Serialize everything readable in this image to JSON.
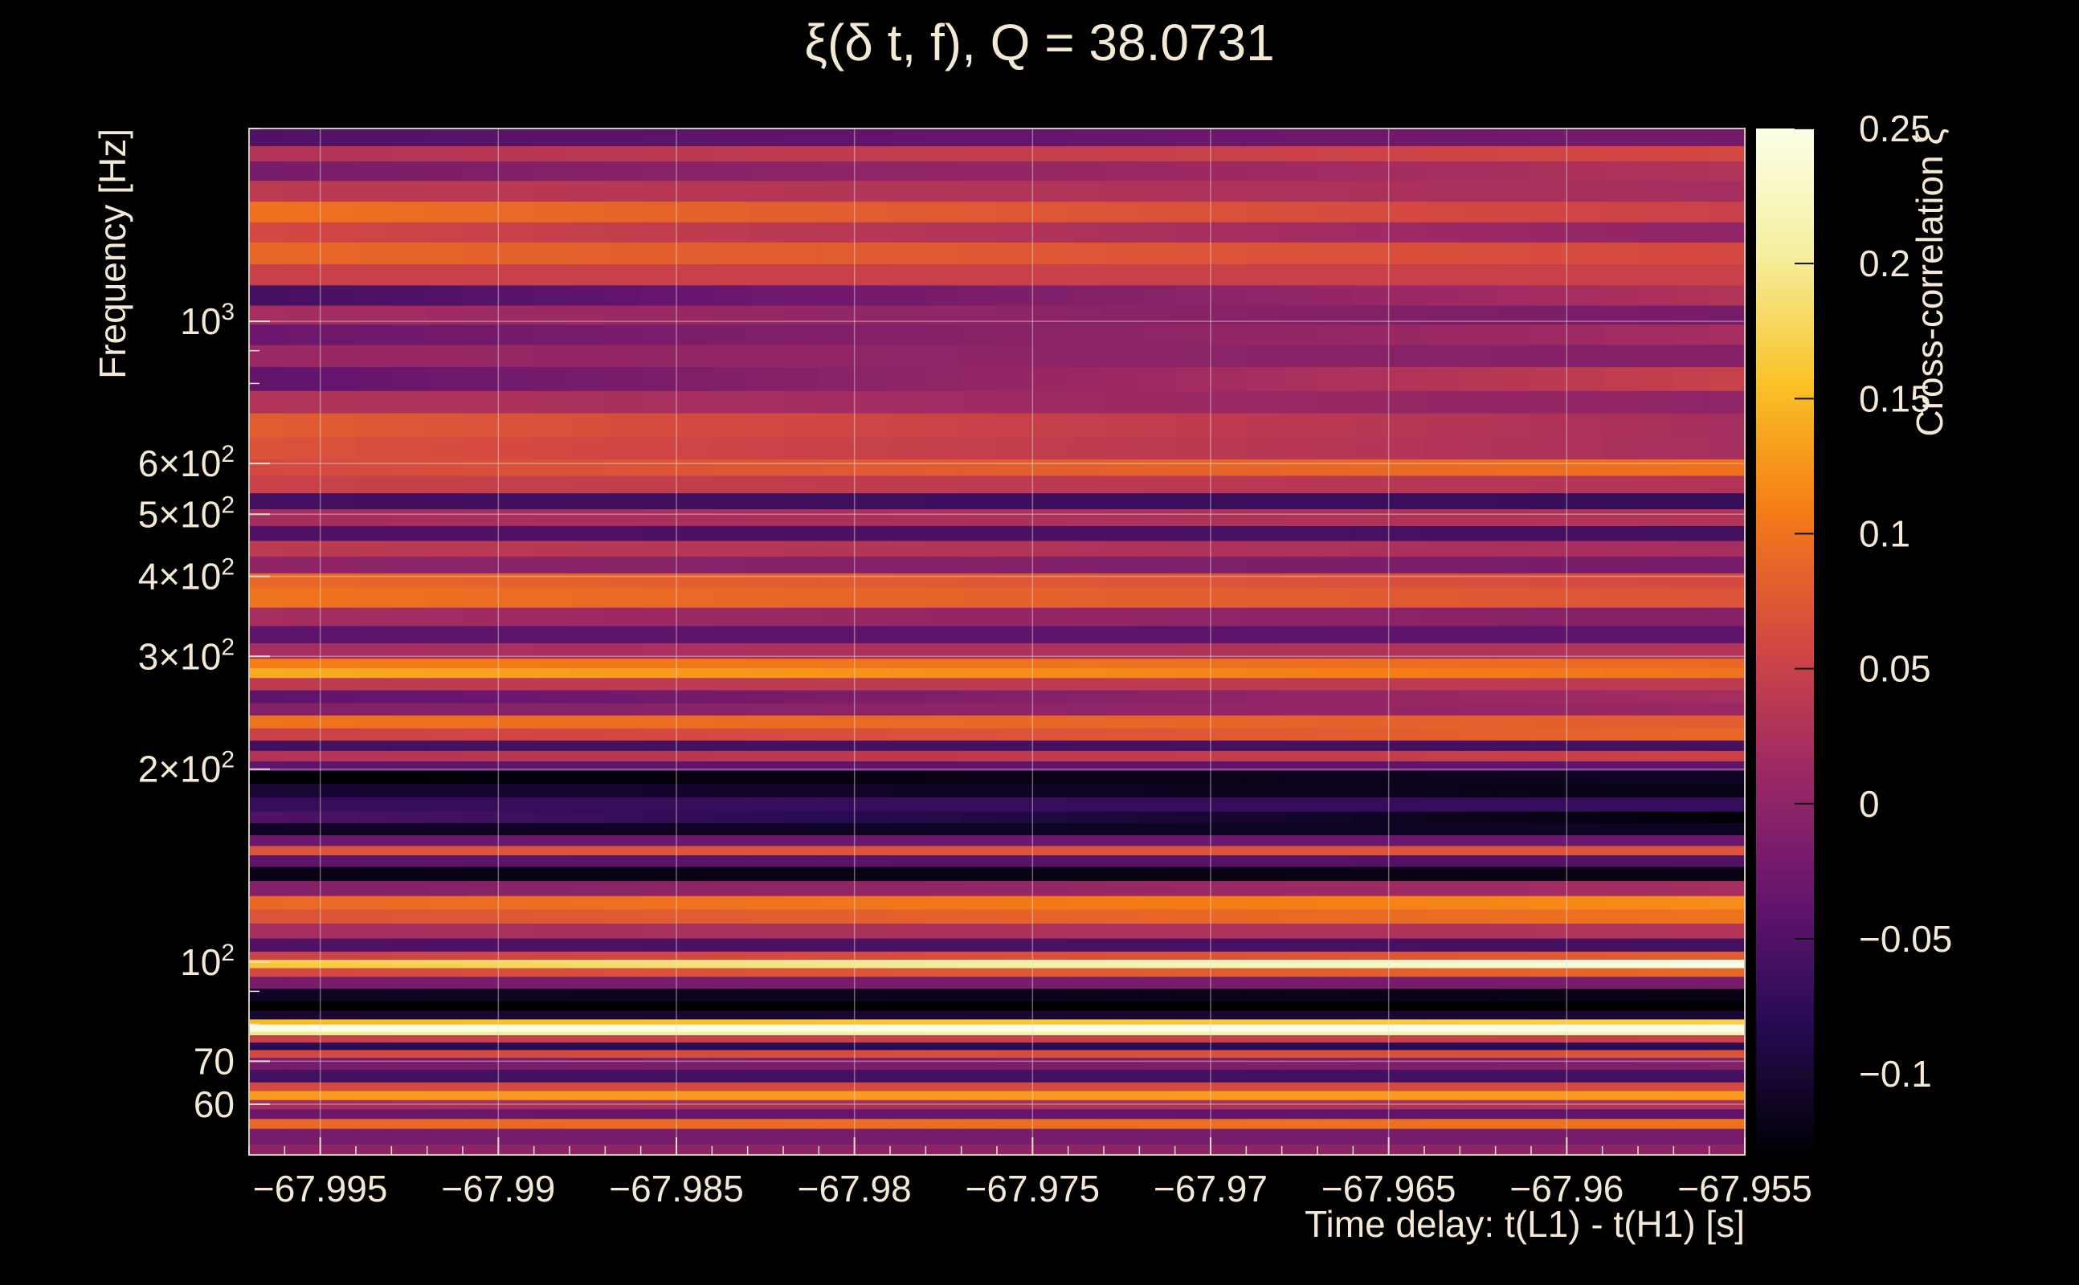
{
  "chart_data": {
    "type": "heatmap",
    "title": "ξ(δ t, f), Q = 38.0731",
    "xlabel": "Time delay: t(L1) - t(H1) [s]",
    "ylabel": "Frequency [Hz]",
    "colorbar_label": "Cross-correlation ξ",
    "x_range": [
      -67.997,
      -67.955
    ],
    "y_range": [
      50,
      2000
    ],
    "y_scale": "log",
    "color_range": [
      -0.13,
      0.25
    ],
    "colormap": "inferno",
    "grid": true,
    "x_ticks": [
      {
        "value": -67.995,
        "label": "−67.995"
      },
      {
        "value": -67.99,
        "label": "−67.99"
      },
      {
        "value": -67.985,
        "label": "−67.985"
      },
      {
        "value": -67.98,
        "label": "−67.98"
      },
      {
        "value": -67.975,
        "label": "−67.975"
      },
      {
        "value": -67.97,
        "label": "−67.97"
      },
      {
        "value": -67.965,
        "label": "−67.965"
      },
      {
        "value": -67.96,
        "label": "−67.96"
      },
      {
        "value": -67.955,
        "label": "−67.955"
      }
    ],
    "y_ticks": [
      {
        "value": 60,
        "label": "60"
      },
      {
        "value": 70,
        "label": "70"
      },
      {
        "value": 100,
        "label": "10",
        "sup": "2"
      },
      {
        "value": 200,
        "label": "2×10",
        "sup": "2"
      },
      {
        "value": 300,
        "label": "3×10",
        "sup": "2"
      },
      {
        "value": 400,
        "label": "4×10",
        "sup": "2"
      },
      {
        "value": 500,
        "label": "5×10",
        "sup": "2"
      },
      {
        "value": 600,
        "label": "6×10",
        "sup": "2"
      },
      {
        "value": 1000,
        "label": "10",
        "sup": "3"
      }
    ],
    "colorbar_ticks": [
      {
        "value": 0.25,
        "label": "0.25"
      },
      {
        "value": 0.2,
        "label": "0.2"
      },
      {
        "value": 0.15,
        "label": "0.15"
      },
      {
        "value": 0.1,
        "label": "0.1"
      },
      {
        "value": 0.05,
        "label": "0.05"
      },
      {
        "value": 0,
        "label": "0"
      },
      {
        "value": -0.05,
        "label": "−0.05"
      },
      {
        "value": -0.1,
        "label": "−0.1"
      }
    ],
    "bands": [
      {
        "f_low": 52,
        "f_high": 55,
        "xi_start": -0.02,
        "xi_end": -0.02
      },
      {
        "f_low": 55,
        "f_high": 57,
        "xi_start": 0.09,
        "xi_end": 0.1
      },
      {
        "f_low": 57,
        "f_high": 59,
        "xi_start": -0.03,
        "xi_end": -0.04
      },
      {
        "f_low": 59,
        "f_high": 61,
        "xi_start": 0.02,
        "xi_end": 0.03
      },
      {
        "f_low": 61,
        "f_high": 63,
        "xi_start": 0.13,
        "xi_end": 0.13
      },
      {
        "f_low": 63,
        "f_high": 65,
        "xi_start": 0.06,
        "xi_end": 0.06
      },
      {
        "f_low": 65,
        "f_high": 68,
        "xi_start": -0.06,
        "xi_end": -0.06
      },
      {
        "f_low": 68,
        "f_high": 71,
        "xi_start": -0.02,
        "xi_end": -0.01
      },
      {
        "f_low": 71,
        "f_high": 73,
        "xi_start": 0.06,
        "xi_end": 0.07
      },
      {
        "f_low": 73,
        "f_high": 75,
        "xi_start": -0.08,
        "xi_end": -0.08
      },
      {
        "f_low": 75,
        "f_high": 77,
        "xi_start": 0.05,
        "xi_end": 0.05
      },
      {
        "f_low": 77,
        "f_high": 78,
        "xi_start": 0.2,
        "xi_end": 0.22
      },
      {
        "f_low": 78,
        "f_high": 80,
        "xi_start": 0.25,
        "xi_end": 0.25
      },
      {
        "f_low": 80,
        "f_high": 81.5,
        "xi_start": 0.15,
        "xi_end": 0.17
      },
      {
        "f_low": 81.5,
        "f_high": 84,
        "xi_start": -0.1,
        "xi_end": -0.1
      },
      {
        "f_low": 84,
        "f_high": 87,
        "xi_start": -0.13,
        "xi_end": -0.13
      },
      {
        "f_low": 87,
        "f_high": 91,
        "xi_start": -0.11,
        "xi_end": -0.12
      },
      {
        "f_low": 91,
        "f_high": 95,
        "xi_start": -0.02,
        "xi_end": -0.02
      },
      {
        "f_low": 95,
        "f_high": 98,
        "xi_start": 0.06,
        "xi_end": 0.09
      },
      {
        "f_low": 98,
        "f_high": 101,
        "xi_start": 0.16,
        "xi_end": 0.25
      },
      {
        "f_low": 101,
        "f_high": 104,
        "xi_start": 0.05,
        "xi_end": 0.08
      },
      {
        "f_low": 104,
        "f_high": 109,
        "xi_start": -0.05,
        "xi_end": -0.06
      },
      {
        "f_low": 109,
        "f_high": 115,
        "xi_start": 0.02,
        "xi_end": 0.03
      },
      {
        "f_low": 115,
        "f_high": 121,
        "xi_start": 0.07,
        "xi_end": 0.1
      },
      {
        "f_low": 121,
        "f_high": 127,
        "xi_start": 0.09,
        "xi_end": 0.12
      },
      {
        "f_low": 127,
        "f_high": 134,
        "xi_start": -0.01,
        "xi_end": 0.02
      },
      {
        "f_low": 134,
        "f_high": 141,
        "xi_start": -0.12,
        "xi_end": -0.12
      },
      {
        "f_low": 141,
        "f_high": 147,
        "xi_start": -0.04,
        "xi_end": -0.05
      },
      {
        "f_low": 147,
        "f_high": 152,
        "xi_start": 0.07,
        "xi_end": 0.07
      },
      {
        "f_low": 152,
        "f_high": 158,
        "xi_start": -0.03,
        "xi_end": -0.03
      },
      {
        "f_low": 158,
        "f_high": 165,
        "xi_start": -0.11,
        "xi_end": -0.11
      },
      {
        "f_low": 165,
        "f_high": 172,
        "xi_start": -0.05,
        "xi_end": -0.13
      },
      {
        "f_low": 172,
        "f_high": 181,
        "xi_start": -0.07,
        "xi_end": -0.07
      },
      {
        "f_low": 181,
        "f_high": 190,
        "xi_start": -0.1,
        "xi_end": -0.12
      },
      {
        "f_low": 190,
        "f_high": 199,
        "xi_start": -0.13,
        "xi_end": -0.11
      },
      {
        "f_low": 199,
        "f_high": 206,
        "xi_start": -0.04,
        "xi_end": -0.04
      },
      {
        "f_low": 206,
        "f_high": 214,
        "xi_start": 0.03,
        "xi_end": 0.05
      },
      {
        "f_low": 214,
        "f_high": 222,
        "xi_start": -0.06,
        "xi_end": -0.06
      },
      {
        "f_low": 222,
        "f_high": 232,
        "xi_start": 0.05,
        "xi_end": 0.09
      },
      {
        "f_low": 232,
        "f_high": 243,
        "xi_start": 0.1,
        "xi_end": 0.08
      },
      {
        "f_low": 243,
        "f_high": 254,
        "xi_start": -0.01,
        "xi_end": 0.01
      },
      {
        "f_low": 254,
        "f_high": 266,
        "xi_start": -0.04,
        "xi_end": 0.02
      },
      {
        "f_low": 266,
        "f_high": 278,
        "xi_start": 0.04,
        "xi_end": 0.04
      },
      {
        "f_low": 278,
        "f_high": 288,
        "xi_start": 0.14,
        "xi_end": 0.1
      },
      {
        "f_low": 288,
        "f_high": 298,
        "xi_start": 0.11,
        "xi_end": 0.09
      },
      {
        "f_low": 298,
        "f_high": 315,
        "xi_start": 0.02,
        "xi_end": 0.03
      },
      {
        "f_low": 315,
        "f_high": 335,
        "xi_start": -0.04,
        "xi_end": -0.04
      },
      {
        "f_low": 335,
        "f_high": 358,
        "xi_start": 0.02,
        "xi_end": -0.01
      },
      {
        "f_low": 358,
        "f_high": 385,
        "xi_start": 0.1,
        "xi_end": 0.07
      },
      {
        "f_low": 385,
        "f_high": 405,
        "xi_start": 0.09,
        "xi_end": 0.06
      },
      {
        "f_low": 405,
        "f_high": 430,
        "xi_start": 0.0,
        "xi_end": -0.02
      },
      {
        "f_low": 430,
        "f_high": 455,
        "xi_start": 0.04,
        "xi_end": 0.02
      },
      {
        "f_low": 455,
        "f_high": 480,
        "xi_start": -0.05,
        "xi_end": -0.06
      },
      {
        "f_low": 480,
        "f_high": 510,
        "xi_start": 0.02,
        "xi_end": 0.03
      },
      {
        "f_low": 510,
        "f_high": 540,
        "xi_start": -0.06,
        "xi_end": -0.07
      },
      {
        "f_low": 540,
        "f_high": 575,
        "xi_start": 0.05,
        "xi_end": 0.03
      },
      {
        "f_low": 575,
        "f_high": 610,
        "xi_start": 0.06,
        "xi_end": 0.1
      },
      {
        "f_low": 610,
        "f_high": 660,
        "xi_start": 0.07,
        "xi_end": 0.02
      },
      {
        "f_low": 660,
        "f_high": 720,
        "xi_start": 0.08,
        "xi_end": 0.02
      },
      {
        "f_low": 720,
        "f_high": 780,
        "xi_start": 0.03,
        "xi_end": 0.0
      },
      {
        "f_low": 780,
        "f_high": 850,
        "xi_start": -0.04,
        "xi_end": 0.05
      },
      {
        "f_low": 850,
        "f_high": 920,
        "xi_start": 0.01,
        "xi_end": -0.01
      },
      {
        "f_low": 920,
        "f_high": 990,
        "xi_start": -0.03,
        "xi_end": 0.02
      },
      {
        "f_low": 990,
        "f_high": 1060,
        "xi_start": 0.02,
        "xi_end": -0.02
      },
      {
        "f_low": 1060,
        "f_high": 1140,
        "xi_start": -0.06,
        "xi_end": 0.03
      },
      {
        "f_low": 1140,
        "f_high": 1230,
        "xi_start": 0.05,
        "xi_end": 0.05
      },
      {
        "f_low": 1230,
        "f_high": 1330,
        "xi_start": 0.09,
        "xi_end": 0.06
      },
      {
        "f_low": 1330,
        "f_high": 1430,
        "xi_start": 0.06,
        "xi_end": 0.0
      },
      {
        "f_low": 1430,
        "f_high": 1540,
        "xi_start": 0.1,
        "xi_end": 0.05
      },
      {
        "f_low": 1540,
        "f_high": 1660,
        "xi_start": 0.04,
        "xi_end": 0.02
      },
      {
        "f_low": 1660,
        "f_high": 1780,
        "xi_start": -0.02,
        "xi_end": 0.03
      },
      {
        "f_low": 1780,
        "f_high": 1880,
        "xi_start": 0.03,
        "xi_end": 0.06
      },
      {
        "f_low": 1880,
        "f_high": 2000,
        "xi_start": -0.05,
        "xi_end": -0.02
      }
    ]
  }
}
